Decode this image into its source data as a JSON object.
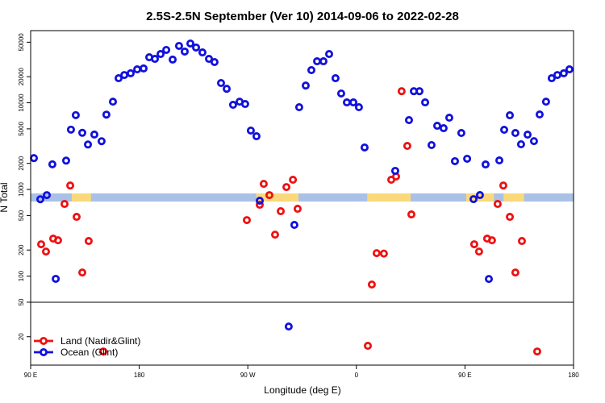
{
  "chart_data": {
    "type": "scatter",
    "title": "2.5S-2.5N September (Ver 10)   2014-09-06 to 2022-02-28",
    "xlabel": "Longitude (deg E)",
    "ylabel": "N Total",
    "xlim": [
      90,
      540
    ],
    "xticks": [
      {
        "value": 90,
        "label": "90 E"
      },
      180,
      {
        "value": 270,
        "label": "90 W"
      },
      {
        "value": 360,
        "label": "0"
      },
      {
        "value": 450,
        "label": "90 E"
      },
      {
        "value": 540,
        "label": "180"
      }
    ],
    "ylim": [
      9.4,
      68000
    ],
    "log_y": true,
    "yticks": [
      20,
      50,
      100,
      200,
      500,
      1000,
      2000,
      5000,
      10000,
      20000,
      50000
    ],
    "hline": 50,
    "band": {
      "ylim": [
        725,
        900
      ],
      "color": "#a9c1e6",
      "land_color": "#fbd97a",
      "land": [
        [
          124,
          140
        ],
        [
          277,
          312
        ],
        [
          369,
          405
        ],
        [
          451,
          474
        ],
        [
          482,
          499
        ]
      ]
    },
    "legend": "lower left",
    "series": [
      {
        "name": "Land (Nadir&Glint)",
        "color": "#ee1111",
        "x": [
          98.7,
          102.7,
          108.7,
          112.7,
          118.1,
          122.8,
          128.1,
          132.8,
          138.1,
          150.2,
          269.2,
          279.9,
          283.2,
          287.9,
          292.6,
          297.3,
          302,
          307.4,
          311.3,
          369.5,
          372.8,
          376.8,
          382.8,
          388.9,
          392.9,
          397.5,
          402.2,
          405.6,
          457.7,
          461.7,
          468.4,
          472.4,
          477.1,
          481.8,
          487.2,
          491.8,
          497.2,
          509.9
        ],
        "values": [
          233,
          192,
          271,
          259,
          680,
          1110,
          483,
          110,
          254,
          13.5,
          443,
          666,
          1160,
          860,
          301,
          561,
          1066,
          1294,
          598,
          15.7,
          80,
          184,
          182,
          1294,
          1410,
          13600,
          3180,
          515,
          233,
          192,
          271,
          259,
          680,
          1110,
          483,
          110,
          254,
          13.5
        ]
      },
      {
        "name": "Ocean (Glint)",
        "color": "#1111dd",
        "x": [
          92.7,
          98,
          103.4,
          108,
          110.8,
          119.4,
          123.4,
          127.4,
          132.8,
          137.5,
          142.8,
          148.8,
          152.8,
          158.2,
          162.9,
          167.6,
          172.9,
          178.3,
          183.6,
          188.3,
          193,
          197.7,
          202.4,
          207.7,
          213,
          217.7,
          222.4,
          227.1,
          232.4,
          237.8,
          242.4,
          247.8,
          252.5,
          257.8,
          263.2,
          267.8,
          272.5,
          277.2,
          279.9,
          303.9,
          308.6,
          312.6,
          318,
          322.7,
          327.4,
          332.7,
          337.4,
          342.7,
          347.4,
          352.1,
          357.5,
          362.1,
          366.8,
          392.2,
          403.6,
          407.6,
          412.3,
          417,
          422.3,
          427,
          432.3,
          437,
          441.7,
          447,
          451.8,
          457.1,
          462.4,
          467.1,
          469.8,
          478.5,
          482.5,
          487.2,
          491.8,
          496.5,
          501.9,
          507.2,
          511.9,
          517.2,
          521.9,
          526.6,
          531.9,
          536.6
        ],
        "values": [
          2300,
          770,
          860,
          1950,
          93,
          2150,
          4900,
          7200,
          4500,
          3300,
          4300,
          3600,
          7300,
          10300,
          19200,
          20900,
          21900,
          24300,
          24900,
          33500,
          32100,
          36500,
          40700,
          31500,
          45300,
          39000,
          48300,
          43400,
          38100,
          32100,
          29500,
          16900,
          14500,
          9480,
          10300,
          9680,
          4780,
          4110,
          741,
          26.2,
          390,
          8890,
          15800,
          23800,
          30100,
          30100,
          36500,
          19200,
          12800,
          10100,
          10100,
          8890,
          3050,
          1640,
          6310,
          13600,
          13600,
          10100,
          3250,
          5430,
          5090,
          6730,
          2120,
          4480,
          2260,
          773,
          861,
          1942,
          92.7,
          2163,
          4880,
          7170,
          4480,
          3320,
          4290,
          3610,
          7330,
          10300,
          19200,
          20900,
          21900,
          24300
        ]
      }
    ]
  }
}
